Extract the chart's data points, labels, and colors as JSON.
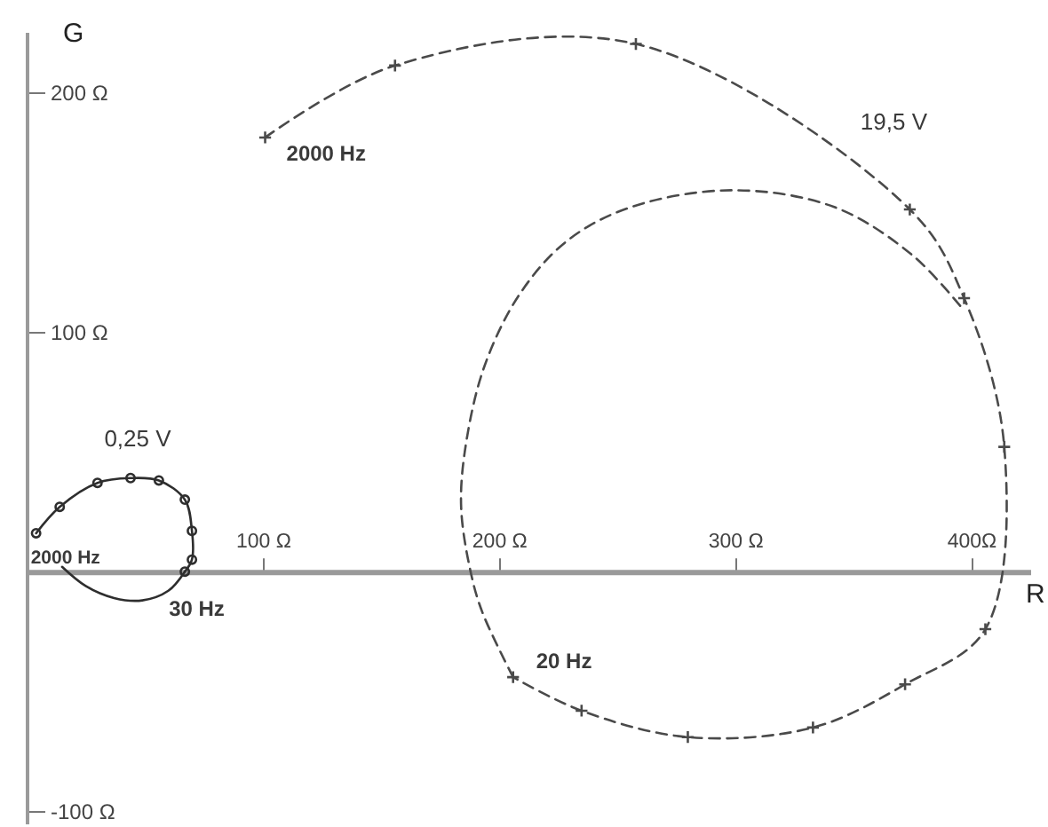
{
  "chart_data": {
    "type": "line",
    "xlabel": "R",
    "ylabel": "G",
    "xlim": [
      0,
      425
    ],
    "ylim": [
      -105,
      225
    ],
    "xticks": [
      {
        "value": 100,
        "label": "100 Ω"
      },
      {
        "value": 200,
        "label": "200 Ω"
      },
      {
        "value": 300,
        "label": "300 Ω"
      },
      {
        "value": 400,
        "label": "400Ω"
      }
    ],
    "yticks": [
      {
        "value": -100,
        "label": "-100 Ω"
      },
      {
        "value": 100,
        "label": "100 Ω"
      },
      {
        "value": 200,
        "label": "200 Ω"
      }
    ],
    "grid": false,
    "series": [
      {
        "name": "19,5 V",
        "color": "#4a4a4a",
        "marker": "cross",
        "line_style": "dashed",
        "x": [
          101,
          156,
          258,
          374,
          397,
          414,
          406,
          372,
          333,
          280,
          235,
          206
        ],
        "values": [
          181,
          211,
          220,
          151,
          114,
          52,
          -24,
          -47,
          -65,
          -69,
          -58,
          -44
        ]
      },
      {
        "color": "#4a4a4a",
        "marker": "none",
        "line_style": "dashed",
        "x": [
          206,
          193,
          188,
          184,
          186,
          194,
          209,
          229,
          256,
          299,
          342,
          375,
          396
        ],
        "values": [
          -44,
          -17,
          0,
          27,
          53,
          86,
          116,
          138,
          152,
          159,
          152,
          132,
          110
        ]
      },
      {
        "name": "0,25 V",
        "color": "#2e2e2e",
        "marker": "circle",
        "line_style": "solid",
        "x": [
          4,
          14,
          30,
          44,
          56,
          67,
          70,
          70,
          67
        ],
        "values": [
          16,
          27,
          37,
          39,
          38,
          30,
          17,
          5,
          0
        ]
      },
      {
        "color": "#2e2e2e",
        "marker": "none",
        "line_style": "solid",
        "x": [
          67,
          60,
          49,
          37,
          25,
          15
        ],
        "values": [
          0,
          -8,
          -12,
          -11,
          -6,
          2
        ]
      }
    ],
    "annotations": [
      {
        "text": "2000 Hz",
        "x": 101,
        "y": 181
      },
      {
        "text": "20 Hz",
        "x": 206,
        "y": -44
      },
      {
        "text": "2000 Hz",
        "x": 4,
        "y": 16
      },
      {
        "text": "30 Hz",
        "x": 67,
        "y": 0
      }
    ]
  }
}
